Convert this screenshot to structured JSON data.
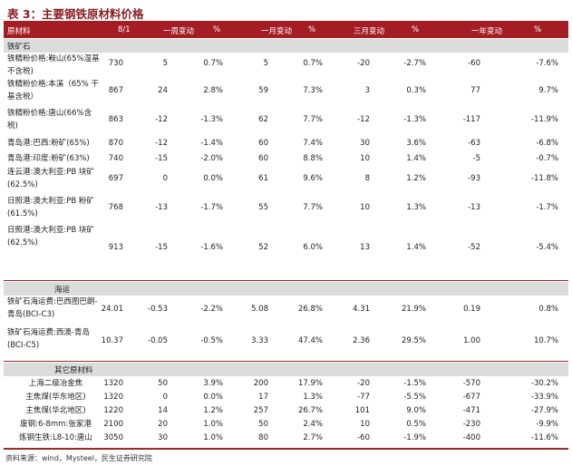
{
  "title": "表 3：主要钢铁原材料价格",
  "headers": [
    "原材料",
    "8/1",
    "一周变动",
    "%",
    "一月变动",
    "%",
    "三月变动",
    "%",
    "一年变动",
    "%"
  ],
  "sections": [
    {
      "name": "铁矿石",
      "rows": [
        {
          "name": "铁精粉价格:鞍山(65%湿基不含税)",
          "values": [
            "730",
            "5",
            "0.7%",
            "5",
            "0.7%",
            "-20",
            "-2.7%",
            "-60",
            "-7.6%"
          ]
        },
        {
          "name": "铁精粉价格:本溪（65% 干基含税）",
          "values": [
            "867",
            "24",
            "2.8%",
            "59",
            "7.3%",
            "3",
            "0.3%",
            "77",
            "9.7%"
          ]
        },
        {
          "name": "铁精粉价格:唐山(66%含税)",
          "values": [
            "863",
            "-12",
            "-1.3%",
            "62",
            "7.7%",
            "-12",
            "-1.3%",
            "-117",
            "-11.9%"
          ]
        },
        {
          "name": "青岛港:巴西:粉矿(65%)",
          "values": [
            "870",
            "-12",
            "-1.4%",
            "60",
            "7.4%",
            "30",
            "3.6%",
            "-63",
            "-6.8%"
          ]
        },
        {
          "name": "青岛港:印度:粉矿(63%)",
          "values": [
            "740",
            "-15",
            "-2.0%",
            "60",
            "8.8%",
            "10",
            "1.4%",
            "-5",
            "-0.7%"
          ]
        },
        {
          "name": "连云港:澳大利亚:PB 块矿(62.5%)",
          "values": [
            "697",
            "0",
            "0.0%",
            "61",
            "9.6%",
            "8",
            "1.2%",
            "-93",
            "-11.8%"
          ]
        },
        {
          "name": "日照港:澳大利亚:PB 粉矿(61.5%)",
          "values": [
            "768",
            "-13",
            "-1.7%",
            "55",
            "7.7%",
            "10",
            "1.3%",
            "-13",
            "-1.7%"
          ]
        },
        {
          "name": "日照港:澳大利亚:PB 块矿(62.5%)",
          "values": [
            "913",
            "-15",
            "-1.6%",
            "52",
            "6.0%",
            "13",
            "1.4%",
            "-52",
            "-5.4%"
          ]
        }
      ]
    },
    {
      "name": "海运",
      "rows": [
        {
          "name": "铁矿石海运费:巴西图巴朗-青岛(BCI-C3)",
          "values": [
            "24.01",
            "-0.53",
            "-2.2%",
            "5.08",
            "26.8%",
            "4.31",
            "21.9%",
            "0.19",
            "0.8%"
          ]
        },
        {
          "name": "铁矿石海运费:西澳-青岛(BCI-C5)",
          "values": [
            "10.37",
            "-0.05",
            "-0.5%",
            "3.33",
            "47.4%",
            "2.36",
            "29.5%",
            "1.00",
            "10.7%"
          ]
        }
      ]
    },
    {
      "name": "其它原材料",
      "rows": [
        {
          "name": "上海二级冶金焦",
          "values": [
            "1320",
            "50",
            "3.9%",
            "200",
            "17.9%",
            "-20",
            "-1.5%",
            "-570",
            "-30.2%"
          ]
        },
        {
          "name": "主焦煤(华东地区)",
          "values": [
            "1320",
            "0",
            "0.0%",
            "17",
            "1.3%",
            "-77",
            "-5.5%",
            "-677",
            "-33.9%"
          ]
        },
        {
          "name": "主焦煤(华北地区)",
          "values": [
            "1220",
            "14",
            "1.2%",
            "257",
            "26.7%",
            "101",
            "9.0%",
            "-471",
            "-27.9%"
          ]
        },
        {
          "name": "废钢:6-8mm:张家港",
          "values": [
            "2100",
            "20",
            "1.0%",
            "50",
            "2.4%",
            "10",
            "0.5%",
            "-230",
            "-9.9%"
          ]
        },
        {
          "name": "炼钢生铁:L8-10:唐山",
          "values": [
            "3050",
            "30",
            "1.0%",
            "80",
            "2.7%",
            "-60",
            "-1.9%",
            "-400",
            "-11.6%"
          ]
        }
      ]
    }
  ],
  "source": "资料来源：wind，Mysteel，民生证券研究院"
}
